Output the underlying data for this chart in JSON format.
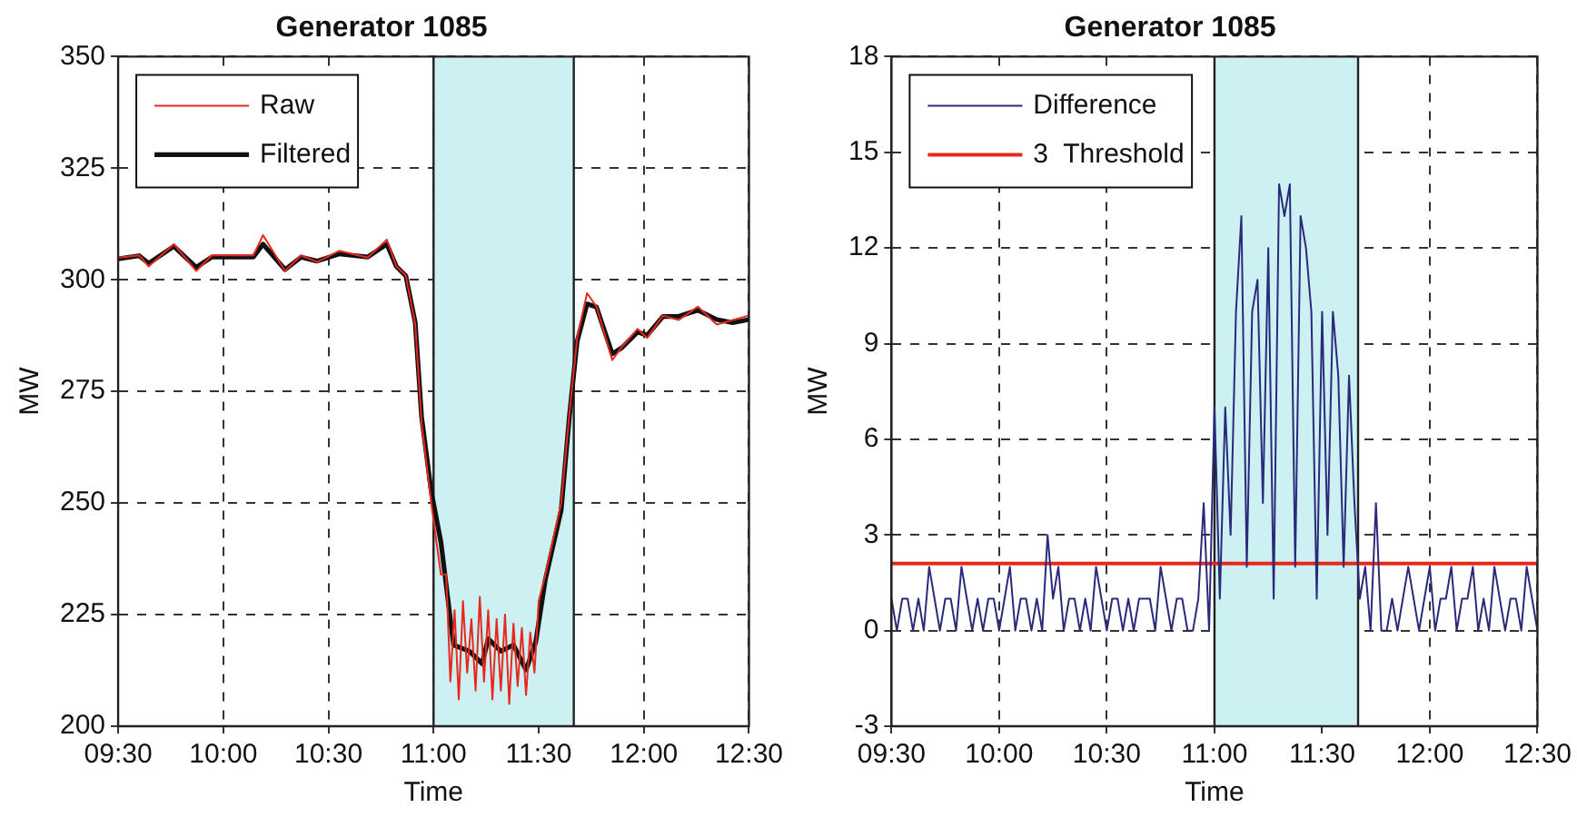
{
  "chart_data": [
    {
      "type": "line",
      "title": "Generator 1085",
      "xlabel": "Time",
      "ylabel": "MW",
      "xlim": [
        9.5,
        12.5
      ],
      "xticks": [
        {
          "value": 9.5,
          "label": "09:30"
        },
        {
          "value": 10,
          "label": "10:00"
        },
        {
          "value": 10.5,
          "label": "10:30"
        },
        {
          "value": 11,
          "label": "11:00"
        },
        {
          "value": 11.5,
          "label": "11:30"
        },
        {
          "value": 12,
          "label": "12:00"
        },
        {
          "value": 12.5,
          "label": "12:30"
        }
      ],
      "ylim": [
        200,
        350
      ],
      "yticks": [
        200,
        225,
        250,
        275,
        300,
        325,
        350
      ],
      "grid": true,
      "legend": "top left",
      "ref_lines": [
        {
          "axis": "x",
          "value": 11,
          "color": "#222222"
        },
        {
          "axis": "x",
          "value": 11.667,
          "color": "#222222"
        }
      ],
      "bands": [
        {
          "axis": "x",
          "from": 11,
          "to": 11.667,
          "color": "#cdf0f3"
        }
      ],
      "series": [
        {
          "name": "Raw",
          "color": "#e8281e",
          "x": [
            9.5,
            9.6,
            9.645,
            9.765,
            9.871,
            9.946,
            10.143,
            10.189,
            10.294,
            10.37,
            10.446,
            10.551,
            10.687,
            10.778,
            10.823,
            10.868,
            10.913,
            10.943,
            10.989,
            11.035,
            11.06,
            11.08,
            11.1,
            11.12,
            11.14,
            11.16,
            11.18,
            11.2,
            11.22,
            11.24,
            11.26,
            11.28,
            11.3,
            11.32,
            11.34,
            11.36,
            11.38,
            11.4,
            11.42,
            11.44,
            11.46,
            11.48,
            11.5,
            11.532,
            11.607,
            11.646,
            11.683,
            11.73,
            11.775,
            11.85,
            11.896,
            11.97,
            12.016,
            12.091,
            12.166,
            12.257,
            12.347,
            12.423,
            12.5
          ],
          "values": [
            305,
            305.5,
            303,
            308,
            302,
            305.5,
            305.5,
            310,
            302,
            305.5,
            304,
            306.5,
            305,
            309,
            303,
            301,
            290,
            268,
            250,
            234,
            234,
            210,
            226,
            206,
            228,
            212,
            224,
            208,
            229,
            210,
            226,
            206,
            224,
            208,
            225,
            205,
            223,
            209,
            222,
            207,
            221,
            212,
            228,
            234,
            250,
            270,
            287,
            297,
            294,
            282,
            285,
            289,
            287,
            292,
            291,
            294,
            290,
            291,
            292
          ]
        },
        {
          "name": "Filtered",
          "color": "#111111",
          "x": [
            9.5,
            9.6,
            9.645,
            9.765,
            9.871,
            9.946,
            10.143,
            10.189,
            10.294,
            10.37,
            10.446,
            10.551,
            10.687,
            10.778,
            10.823,
            10.868,
            10.913,
            10.943,
            10.989,
            11.035,
            11.095,
            11.171,
            11.231,
            11.26,
            11.32,
            11.38,
            11.44,
            11.486,
            11.532,
            11.607,
            11.646,
            11.683,
            11.73,
            11.775,
            11.85,
            11.896,
            11.97,
            12.016,
            12.091,
            12.166,
            12.257,
            12.347,
            12.423,
            12.5
          ],
          "values": [
            304.7,
            305.4,
            303.7,
            307.5,
            302.8,
            305.1,
            305.1,
            308,
            302.3,
            305.1,
            304.2,
            305.8,
            305.1,
            308,
            303,
            300.9,
            290.4,
            269.4,
            252.6,
            241.3,
            218.2,
            216.8,
            214,
            219.6,
            216.8,
            218.2,
            212.6,
            218.9,
            232.9,
            248.4,
            269.4,
            286.2,
            294.6,
            293.9,
            283.4,
            284.8,
            288.3,
            287.6,
            291.8,
            291.8,
            293.2,
            291.1,
            290.4,
            291.1
          ]
        }
      ]
    },
    {
      "type": "line",
      "title": "Generator 1085",
      "xlabel": "Time",
      "ylabel": "MW",
      "xlim": [
        9.5,
        12.5
      ],
      "xticks": [
        {
          "value": 9.5,
          "label": "09:30"
        },
        {
          "value": 10,
          "label": "10:00"
        },
        {
          "value": 10.5,
          "label": "10:30"
        },
        {
          "value": 11,
          "label": "11:00"
        },
        {
          "value": 11.5,
          "label": "11:30"
        },
        {
          "value": 12,
          "label": "12:00"
        },
        {
          "value": 12.5,
          "label": "12:30"
        }
      ],
      "ylim": [
        -3,
        18
      ],
      "yticks": [
        -3,
        0,
        3,
        6,
        9,
        12,
        15,
        18
      ],
      "grid": true,
      "legend": "top left",
      "ref_lines": [
        {
          "axis": "x",
          "value": 11,
          "color": "#222222"
        },
        {
          "axis": "x",
          "value": 11.667,
          "color": "#222222"
        }
      ],
      "bands": [
        {
          "axis": "x",
          "from": 11,
          "to": 11.667,
          "color": "#cdf0f3"
        }
      ],
      "series": [
        {
          "name": "Difference",
          "color": "#2a2a7a",
          "x": [
            9.5,
            9.525,
            9.55,
            9.575,
            9.6,
            9.625,
            9.65,
            9.675,
            9.7,
            9.725,
            9.75,
            9.775,
            9.8,
            9.825,
            9.85,
            9.875,
            9.9,
            9.925,
            9.95,
            9.975,
            10,
            10.025,
            10.05,
            10.075,
            10.1,
            10.125,
            10.15,
            10.175,
            10.2,
            10.225,
            10.25,
            10.275,
            10.3,
            10.325,
            10.35,
            10.375,
            10.4,
            10.425,
            10.45,
            10.475,
            10.5,
            10.525,
            10.55,
            10.575,
            10.6,
            10.625,
            10.65,
            10.675,
            10.7,
            10.725,
            10.75,
            10.775,
            10.8,
            10.825,
            10.85,
            10.875,
            10.9,
            10.925,
            10.95,
            10.975,
            11,
            11.025,
            11.05,
            11.075,
            11.1,
            11.125,
            11.15,
            11.175,
            11.2,
            11.225,
            11.25,
            11.275,
            11.3,
            11.325,
            11.35,
            11.375,
            11.4,
            11.425,
            11.45,
            11.475,
            11.5,
            11.525,
            11.55,
            11.575,
            11.6,
            11.625,
            11.65,
            11.675,
            11.7,
            11.725,
            11.75,
            11.775,
            11.8,
            11.825,
            11.85,
            11.875,
            11.9,
            11.925,
            11.95,
            11.975,
            12,
            12.025,
            12.05,
            12.075,
            12.1,
            12.125,
            12.15,
            12.175,
            12.2,
            12.225,
            12.25,
            12.275,
            12.3,
            12.325,
            12.35,
            12.375,
            12.4,
            12.425,
            12.45,
            12.475,
            12.5
          ],
          "values": [
            1,
            0,
            1,
            1,
            0,
            1,
            0,
            2,
            1,
            0,
            1,
            1,
            0,
            2,
            1,
            0,
            1,
            0,
            1,
            1,
            0,
            1,
            2,
            0,
            1,
            1,
            0,
            1,
            0,
            3,
            1,
            2,
            0,
            1,
            1,
            0,
            1,
            0,
            2,
            1,
            0,
            1,
            1,
            0,
            1,
            0,
            1,
            1,
            1,
            0,
            2,
            1,
            0,
            1,
            1,
            0,
            0,
            1,
            4,
            0,
            7,
            1,
            7,
            3,
            10,
            13,
            2,
            10,
            11,
            4,
            12,
            1,
            14,
            13,
            14,
            2,
            13,
            12,
            10,
            1,
            10,
            3,
            10,
            8,
            2,
            8,
            4,
            1,
            2,
            0,
            4,
            0,
            0,
            1,
            0,
            1,
            2,
            1,
            0,
            1,
            2,
            0,
            1,
            1,
            2,
            0,
            1,
            1,
            2,
            0,
            1,
            0,
            2,
            1,
            0,
            1,
            1,
            0,
            2,
            1,
            0
          ]
        },
        {
          "name": "3  Threshold",
          "color": "#e8281e",
          "x": [
            9.5,
            12.5
          ],
          "values": [
            2.1,
            2.1
          ]
        }
      ]
    }
  ]
}
